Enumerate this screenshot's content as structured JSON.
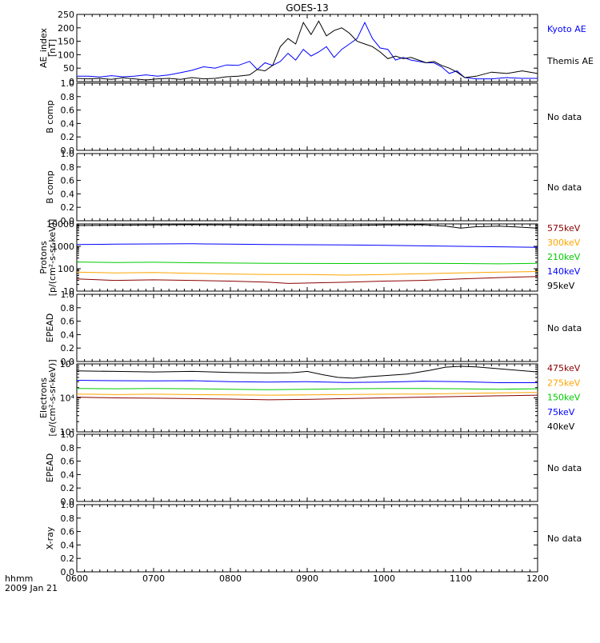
{
  "title": "GOES-13",
  "footer": {
    "line1": "hhmm",
    "line2": "2009 Jan 21"
  },
  "x_axis": {
    "range": [
      600,
      1200
    ],
    "ticks": [
      "0600",
      "0700",
      "0800",
      "0900",
      "1000",
      "1100",
      "1200"
    ],
    "minor_step_minutes": 10
  },
  "chart_data": [
    {
      "type": "line",
      "id": "ae",
      "ylabel": [
        "AE_index",
        "[nT]"
      ],
      "ylim": [
        0,
        250
      ],
      "yticks": [
        0,
        50,
        100,
        150,
        200,
        250
      ],
      "ytick_labels": [
        "0",
        "50",
        "100",
        "150",
        "200",
        "250"
      ],
      "series": [
        {
          "name": "Kyoto AE",
          "color": "#0000ff",
          "x": [
            600,
            615,
            630,
            645,
            660,
            675,
            690,
            705,
            720,
            735,
            750,
            765,
            780,
            795,
            810,
            825,
            835,
            845,
            855,
            865,
            875,
            885,
            895,
            905,
            915,
            925,
            935,
            945,
            955,
            965,
            975,
            985,
            995,
            1005,
            1015,
            1025,
            1035,
            1045,
            1055,
            1065,
            1075,
            1085,
            1095,
            1105,
            1120,
            1140,
            1160,
            1180,
            1200
          ],
          "y": [
            20,
            20,
            17,
            22,
            18,
            20,
            25,
            20,
            25,
            33,
            42,
            55,
            50,
            62,
            60,
            75,
            45,
            70,
            60,
            75,
            105,
            80,
            120,
            95,
            110,
            130,
            90,
            120,
            140,
            160,
            220,
            160,
            125,
            120,
            80,
            90,
            80,
            75,
            70,
            70,
            55,
            30,
            40,
            15,
            10,
            10,
            15,
            12,
            12
          ]
        },
        {
          "name": "Themis AE",
          "color": "#000000",
          "x": [
            600,
            615,
            630,
            645,
            660,
            675,
            690,
            705,
            720,
            735,
            750,
            765,
            780,
            795,
            810,
            825,
            835,
            845,
            855,
            865,
            875,
            885,
            895,
            905,
            915,
            925,
            935,
            945,
            955,
            965,
            975,
            985,
            995,
            1005,
            1015,
            1025,
            1035,
            1045,
            1055,
            1065,
            1075,
            1085,
            1095,
            1105,
            1120,
            1140,
            1160,
            1180,
            1200
          ],
          "y": [
            12,
            10,
            12,
            8,
            14,
            10,
            6,
            10,
            12,
            8,
            15,
            10,
            12,
            18,
            20,
            25,
            45,
            40,
            60,
            130,
            160,
            140,
            220,
            175,
            225,
            170,
            190,
            200,
            180,
            150,
            140,
            130,
            110,
            85,
            95,
            85,
            90,
            80,
            70,
            75,
            60,
            50,
            35,
            15,
            20,
            35,
            30,
            40,
            30
          ]
        }
      ],
      "legend_placement": "right",
      "grid": false
    },
    {
      "type": "line",
      "id": "bcomp1",
      "ylabel": [
        "B comp"
      ],
      "ylim": [
        0,
        1
      ],
      "yticks": [
        0,
        0.2,
        0.4,
        0.6,
        0.8,
        1.0
      ],
      "ytick_labels": [
        "0.0",
        "0.2",
        "0.4",
        "0.6",
        "0.8",
        "1.0"
      ],
      "series": [],
      "status": "No data"
    },
    {
      "type": "line",
      "id": "bcomp2",
      "ylabel": [
        "B comp"
      ],
      "ylim": [
        0,
        1
      ],
      "yticks": [
        0,
        0.2,
        0.4,
        0.6,
        0.8,
        1.0
      ],
      "ytick_labels": [
        "0.0",
        "0.2",
        "0.4",
        "0.6",
        "0.8",
        "1.0"
      ],
      "series": [],
      "status": "No data"
    },
    {
      "type": "line",
      "id": "protons",
      "ylabel": [
        "Protons",
        "[p/(cm²-s-sr-keV)]"
      ],
      "yscale": "log",
      "ylim": [
        10,
        10000
      ],
      "yticks": [
        10,
        100,
        1000,
        10000
      ],
      "ytick_labels": [
        "10",
        "100",
        "1000",
        "10000"
      ],
      "legend_placement": "right",
      "series": [
        {
          "name": "575keV",
          "color": "#8b0000",
          "x": [
            600,
            650,
            700,
            750,
            800,
            850,
            875,
            900,
            950,
            1000,
            1050,
            1100,
            1150,
            1200
          ],
          "y": [
            35,
            30,
            32,
            30,
            28,
            25,
            22,
            23,
            25,
            28,
            30,
            35,
            40,
            45
          ]
        },
        {
          "name": "300keV",
          "color": "#ffa500",
          "x": [
            600,
            650,
            700,
            750,
            800,
            850,
            900,
            950,
            1000,
            1050,
            1100,
            1150,
            1200
          ],
          "y": [
            70,
            65,
            68,
            62,
            58,
            55,
            55,
            52,
            55,
            60,
            65,
            70,
            75
          ]
        },
        {
          "name": "210keV",
          "color": "#00cc00",
          "x": [
            600,
            650,
            700,
            750,
            800,
            850,
            900,
            950,
            1000,
            1050,
            1100,
            1150,
            1200
          ],
          "y": [
            200,
            190,
            195,
            185,
            180,
            175,
            172,
            170,
            172,
            175,
            170,
            165,
            175
          ]
        },
        {
          "name": "140keV",
          "color": "#0000ff",
          "x": [
            600,
            650,
            700,
            750,
            800,
            850,
            900,
            950,
            1000,
            1050,
            1100,
            1150,
            1200
          ],
          "y": [
            1200,
            1250,
            1280,
            1300,
            1250,
            1200,
            1180,
            1150,
            1100,
            1050,
            1000,
            950,
            900
          ]
        },
        {
          "name": "95keV",
          "color": "#000000",
          "x": [
            600,
            650,
            700,
            750,
            800,
            850,
            900,
            950,
            1000,
            1050,
            1080,
            1100,
            1120,
            1150,
            1200
          ],
          "y": [
            8500,
            8800,
            9000,
            9200,
            9000,
            8800,
            8600,
            8400,
            9000,
            9200,
            8000,
            6500,
            7500,
            8000,
            6500
          ]
        }
      ]
    },
    {
      "type": "line",
      "id": "epead1",
      "ylabel": [
        "EPEAD"
      ],
      "ylim": [
        0,
        1
      ],
      "yticks": [
        0,
        0.2,
        0.4,
        0.6,
        0.8,
        1.0
      ],
      "ytick_labels": [
        "0.0",
        "0.2",
        "0.4",
        "0.6",
        "0.8",
        "1.0"
      ],
      "series": [],
      "status": "No data"
    },
    {
      "type": "line",
      "id": "electrons",
      "ylabel": [
        "Electrons",
        "[e/(cm²-s-sr-keV)]"
      ],
      "yscale": "log",
      "ylim": [
        1000,
        100000
      ],
      "yticks": [
        1000,
        10000,
        100000
      ],
      "ytick_labels": [
        "10³",
        "10⁴",
        "10⁵"
      ],
      "legend_placement": "right",
      "series": [
        {
          "name": "475keV",
          "color": "#8b0000",
          "x": [
            600,
            650,
            700,
            750,
            800,
            850,
            900,
            950,
            1000,
            1050,
            1100,
            1150,
            1200
          ],
          "y": [
            10500,
            10000,
            9800,
            9500,
            9200,
            8800,
            9000,
            9500,
            10000,
            10500,
            11000,
            11500,
            12000
          ]
        },
        {
          "name": "275keV",
          "color": "#ffa500",
          "x": [
            600,
            650,
            700,
            750,
            800,
            850,
            900,
            950,
            1000,
            1050,
            1100,
            1150,
            1200
          ],
          "y": [
            13000,
            12500,
            12800,
            12500,
            12300,
            12000,
            12200,
            12500,
            12800,
            13000,
            13500,
            14000,
            14500
          ]
        },
        {
          "name": "150keV",
          "color": "#00cc00",
          "x": [
            600,
            650,
            700,
            750,
            800,
            850,
            900,
            950,
            1000,
            1050,
            1100,
            1150,
            1200
          ],
          "y": [
            19000,
            18500,
            19000,
            18500,
            18000,
            17500,
            18000,
            18500,
            19000,
            19000,
            18500,
            18000,
            18500
          ]
        },
        {
          "name": "75keV",
          "color": "#0000ff",
          "x": [
            600,
            650,
            700,
            750,
            800,
            850,
            900,
            950,
            1000,
            1050,
            1100,
            1150,
            1200
          ],
          "y": [
            33000,
            32000,
            31500,
            32000,
            30000,
            29000,
            30000,
            28500,
            29000,
            31000,
            30000,
            28000,
            28000
          ]
        },
        {
          "name": "40keV",
          "color": "#000000",
          "x": [
            600,
            650,
            700,
            750,
            800,
            850,
            880,
            900,
            920,
            940,
            960,
            980,
            1000,
            1030,
            1060,
            1080,
            1100,
            1120,
            1150,
            1200
          ],
          "y": [
            62000,
            60000,
            58000,
            60000,
            56000,
            54000,
            55000,
            60000,
            48000,
            40000,
            38000,
            42000,
            45000,
            50000,
            65000,
            80000,
            85000,
            82000,
            72000,
            58000
          ]
        }
      ]
    },
    {
      "type": "line",
      "id": "epead2",
      "ylabel": [
        "EPEAD"
      ],
      "ylim": [
        0,
        1
      ],
      "yticks": [
        0,
        0.2,
        0.4,
        0.6,
        0.8,
        1.0
      ],
      "ytick_labels": [
        "0.0",
        "0.2",
        "0.4",
        "0.6",
        "0.8",
        "1.0"
      ],
      "series": [],
      "status": "No data"
    },
    {
      "type": "line",
      "id": "xray",
      "ylabel": [
        "X-ray"
      ],
      "ylim": [
        0,
        1
      ],
      "yticks": [
        0,
        0.2,
        0.4,
        0.6,
        0.8,
        1.0
      ],
      "ytick_labels": [
        "0.0",
        "0.2",
        "0.4",
        "0.6",
        "0.8",
        "1.0"
      ],
      "series": [],
      "status": "No data"
    }
  ]
}
